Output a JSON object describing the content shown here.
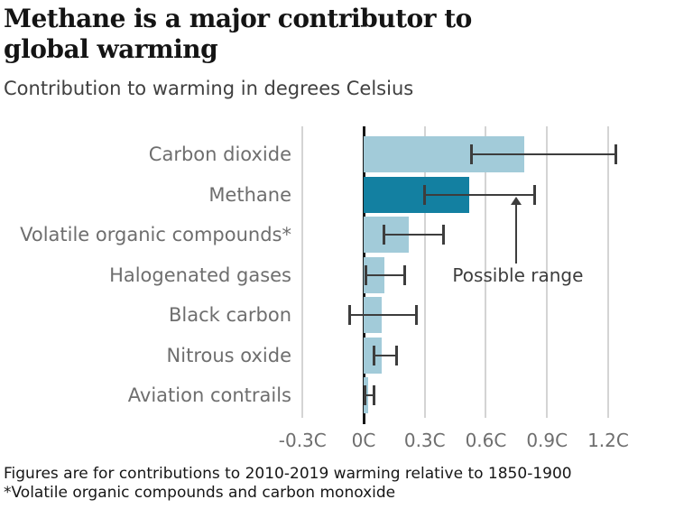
{
  "header": {
    "title_line1": "Methane is a major contributor to",
    "title_line2": "global warming",
    "subtitle": "Contribution to warming in degrees Celsius"
  },
  "chart_data": {
    "type": "bar",
    "orientation": "horizontal",
    "title": "Methane is a major contributor to global warming",
    "subtitle": "Contribution to warming in degrees Celsius",
    "unit": "degrees Celsius",
    "categories": [
      "Carbon dioxide",
      "Methane",
      "Volatile organic compounds*",
      "Halogenated gases",
      "Black carbon",
      "Nitrous oxide",
      "Aviation contrails"
    ],
    "values": [
      0.79,
      0.52,
      0.22,
      0.1,
      0.09,
      0.09,
      0.02
    ],
    "ranges": [
      [
        0.53,
        1.24
      ],
      [
        0.3,
        0.84
      ],
      [
        0.1,
        0.39
      ],
      [
        0.01,
        0.2
      ],
      [
        -0.07,
        0.26
      ],
      [
        0.05,
        0.16
      ],
      [
        0.005,
        0.05
      ]
    ],
    "highlight_index": 1,
    "x_ticks": [
      "-0.3C",
      "0C",
      "0.3C",
      "0.6C",
      "0.9C",
      "1.2C"
    ],
    "x_tick_values": [
      -0.3,
      0,
      0.3,
      0.6,
      0.9,
      1.2
    ],
    "xlim": [
      -0.32,
      1.52
    ],
    "grid": true,
    "legend_position": "none",
    "annotation": {
      "label": "Possible range",
      "x": 0.748,
      "points_to": "Methane range"
    },
    "bar_color": "#a2cbd9",
    "highlight_color": "#1380a1",
    "error_color": "#3d3d3d"
  },
  "footer": {
    "line1": "Figures are for contributions to 2010-2019 warming relative to 1850-1900",
    "line2": "*Volatile organic compounds and carbon monoxide"
  }
}
